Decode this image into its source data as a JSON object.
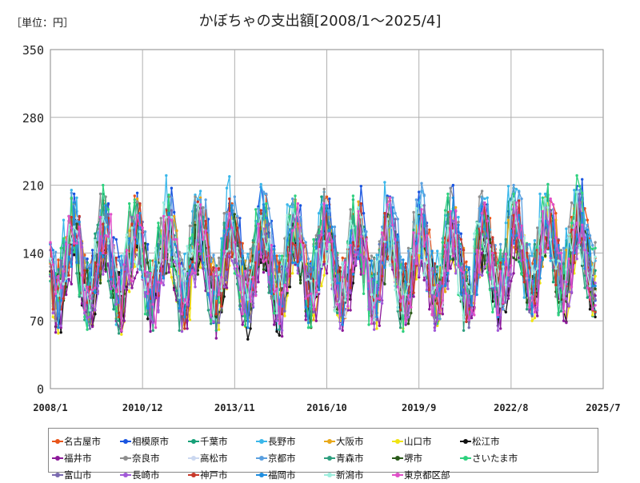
{
  "unit_label": "［単位：円］",
  "chart_data": {
    "type": "line",
    "title": "かぼちゃの支出額[2008/1～2025/4]",
    "xlabel": "",
    "ylabel": "",
    "ylim": [
      0,
      350
    ],
    "yticks": [
      0,
      70,
      140,
      210,
      280,
      350
    ],
    "x_start": "2008-01",
    "x_end": "2025-04",
    "xlim": [
      "2008-01",
      "2025-07"
    ],
    "xticks": [
      {
        "label": "2008/1",
        "date": "2008-01"
      },
      {
        "label": "2010/12",
        "date": "2010-12"
      },
      {
        "label": "2013/11",
        "date": "2013-11"
      },
      {
        "label": "2016/10",
        "date": "2016-10"
      },
      {
        "label": "2019/9",
        "date": "2019-09"
      },
      {
        "label": "2022/8",
        "date": "2022-08"
      },
      {
        "label": "2025/7",
        "date": "2025-07"
      }
    ],
    "grid": true,
    "legend_position": "bottom",
    "seasonal_pattern_note_free": true,
    "series": [
      {
        "name": "名古屋市",
        "color": "#e8541a",
        "base": 135,
        "amp": 45,
        "peak": 10,
        "seed": 1
      },
      {
        "name": "相模原市",
        "color": "#1a55e0",
        "base": 138,
        "amp": 48,
        "peak": 10,
        "seed": 2
      },
      {
        "name": "千葉市",
        "color": "#16a078",
        "base": 132,
        "amp": 44,
        "peak": 9,
        "seed": 3
      },
      {
        "name": "長野市",
        "color": "#3ab7ea",
        "base": 140,
        "amp": 50,
        "peak": 9,
        "seed": 4
      },
      {
        "name": "大阪市",
        "color": "#e8a81a",
        "base": 130,
        "amp": 42,
        "peak": 10,
        "seed": 5
      },
      {
        "name": "山口市",
        "color": "#f0e412",
        "base": 118,
        "amp": 40,
        "peak": 10,
        "seed": 6
      },
      {
        "name": "松江市",
        "color": "#111111",
        "base": 118,
        "amp": 42,
        "peak": 10,
        "seed": 7
      },
      {
        "name": "福井市",
        "color": "#8c1a9a",
        "base": 112,
        "amp": 40,
        "peak": 10,
        "seed": 8
      },
      {
        "name": "奈良市",
        "color": "#8e8e8e",
        "base": 138,
        "amp": 44,
        "peak": 9,
        "seed": 9
      },
      {
        "name": "高松市",
        "color": "#cbd8f0",
        "base": 128,
        "amp": 38,
        "peak": 10,
        "seed": 10
      },
      {
        "name": "京都市",
        "color": "#5aa0e0",
        "base": 140,
        "amp": 46,
        "peak": 10,
        "seed": 11
      },
      {
        "name": "青森市",
        "color": "#2e9e7e",
        "base": 125,
        "amp": 44,
        "peak": 9,
        "seed": 12
      },
      {
        "name": "堺市",
        "color": "#2a5a1a",
        "base": 122,
        "amp": 40,
        "peak": 10,
        "seed": 13
      },
      {
        "name": "さいたま市",
        "color": "#2ed17e",
        "base": 135,
        "amp": 48,
        "peak": 9,
        "seed": 14
      },
      {
        "name": "富山市",
        "color": "#7a6ab0",
        "base": 128,
        "amp": 42,
        "peak": 10,
        "seed": 15
      },
      {
        "name": "長崎市",
        "color": "#a25ad8",
        "base": 118,
        "amp": 40,
        "peak": 10,
        "seed": 16
      },
      {
        "name": "神戸市",
        "color": "#c8382a",
        "base": 132,
        "amp": 44,
        "peak": 10,
        "seed": 17
      },
      {
        "name": "福岡市",
        "color": "#1e8ee0",
        "base": 130,
        "amp": 42,
        "peak": 10,
        "seed": 18
      },
      {
        "name": "新潟市",
        "color": "#9eeede",
        "base": 130,
        "amp": 42,
        "peak": 9,
        "seed": 19
      },
      {
        "name": "東京都区部",
        "color": "#e050c8",
        "base": 128,
        "amp": 44,
        "peak": 10,
        "seed": 20
      }
    ]
  }
}
